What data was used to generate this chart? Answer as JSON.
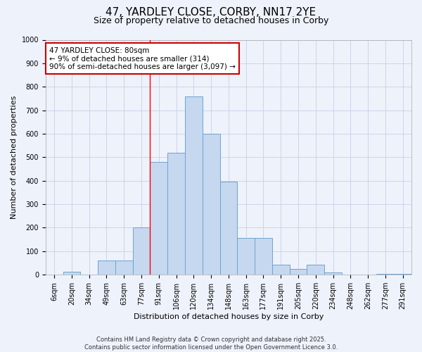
{
  "title": "47, YARDLEY CLOSE, CORBY, NN17 2YE",
  "subtitle": "Size of property relative to detached houses in Corby",
  "xlabel": "Distribution of detached houses by size in Corby",
  "ylabel": "Number of detached properties",
  "categories": [
    "6sqm",
    "20sqm",
    "34sqm",
    "49sqm",
    "63sqm",
    "77sqm",
    "91sqm",
    "106sqm",
    "120sqm",
    "134sqm",
    "148sqm",
    "163sqm",
    "177sqm",
    "191sqm",
    "205sqm",
    "220sqm",
    "234sqm",
    "248sqm",
    "262sqm",
    "277sqm",
    "291sqm"
  ],
  "values": [
    0,
    12,
    0,
    60,
    60,
    200,
    480,
    520,
    760,
    600,
    395,
    155,
    155,
    42,
    25,
    42,
    10,
    0,
    0,
    5,
    5
  ],
  "bar_color": "#c5d8f0",
  "bar_edge_color": "#6ea4d0",
  "red_line_index": 5,
  "annotation_text": "47 YARDLEY CLOSE: 80sqm\n← 9% of detached houses are smaller (314)\n90% of semi-detached houses are larger (3,097) →",
  "annotation_box_facecolor": "#ffffff",
  "annotation_box_edgecolor": "#cc0000",
  "ylim": [
    0,
    1000
  ],
  "yticks": [
    0,
    100,
    200,
    300,
    400,
    500,
    600,
    700,
    800,
    900,
    1000
  ],
  "background_color": "#eef2fb",
  "plot_background": "#eef2fb",
  "grid_color": "#c8d0e8",
  "footer_text": "Contains HM Land Registry data © Crown copyright and database right 2025.\nContains public sector information licensed under the Open Government Licence 3.0.",
  "title_fontsize": 11,
  "subtitle_fontsize": 9,
  "axis_label_fontsize": 8,
  "tick_fontsize": 7,
  "annotation_fontsize": 7.5,
  "footer_fontsize": 6
}
